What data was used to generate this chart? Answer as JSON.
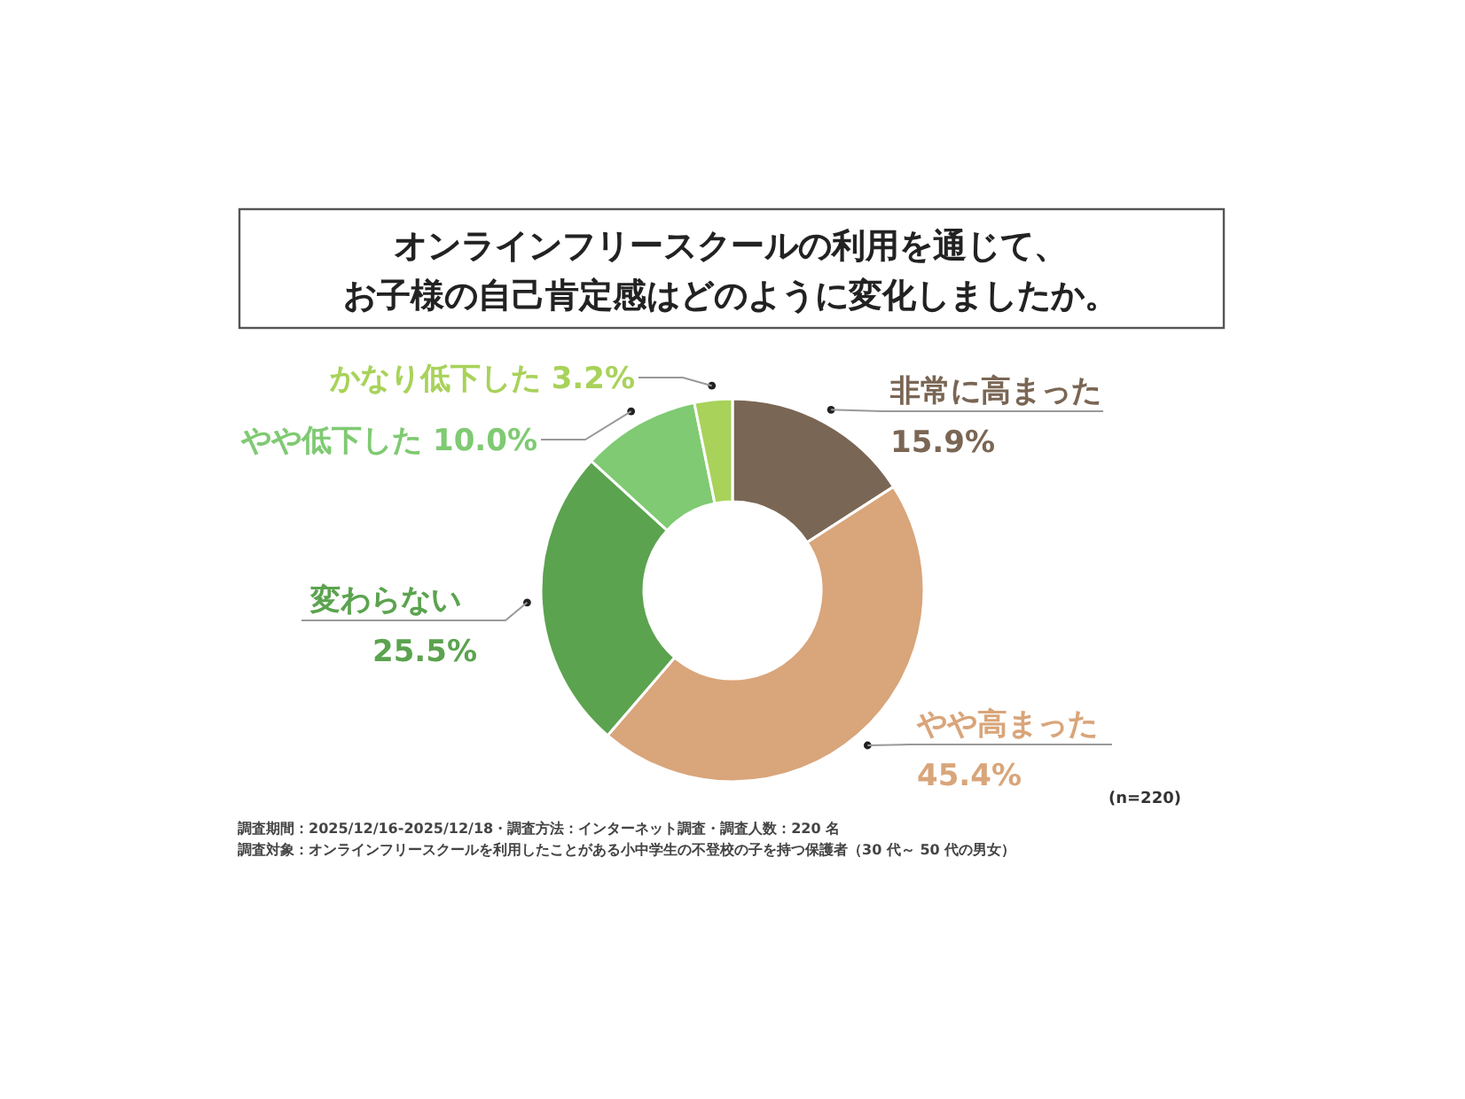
{
  "chart_data": {
    "type": "donut",
    "title": "オンラインフリースクールの利用を通じて、",
    "subtitle": "お子様の自己肯定感はどのように変化しましたか。",
    "categories": [
      "非常に高まった",
      "やや高まった",
      "変わらない",
      "やや低下した",
      "かなり低下した"
    ],
    "values": [
      15.9,
      45.4,
      25.5,
      10.0,
      3.2
    ],
    "colors": [
      "#7a6654",
      "#d9a57a",
      "#5ba34f",
      "#7fca72",
      "#a8d25a"
    ],
    "value_labels": [
      "15.9%",
      "45.4%",
      "25.5%",
      "10.0%",
      "3.2%"
    ],
    "annotations": [
      "(n=220)",
      "調査期間：2025/12/16-2025/12/18・調査方法：インターネット調査・調査人数：220 名",
      "調査対象：オンラインフリースクールを利用したことがある小中学生の不登校の子を持つ保護者（30 代～ 50 代の男女）"
    ]
  }
}
